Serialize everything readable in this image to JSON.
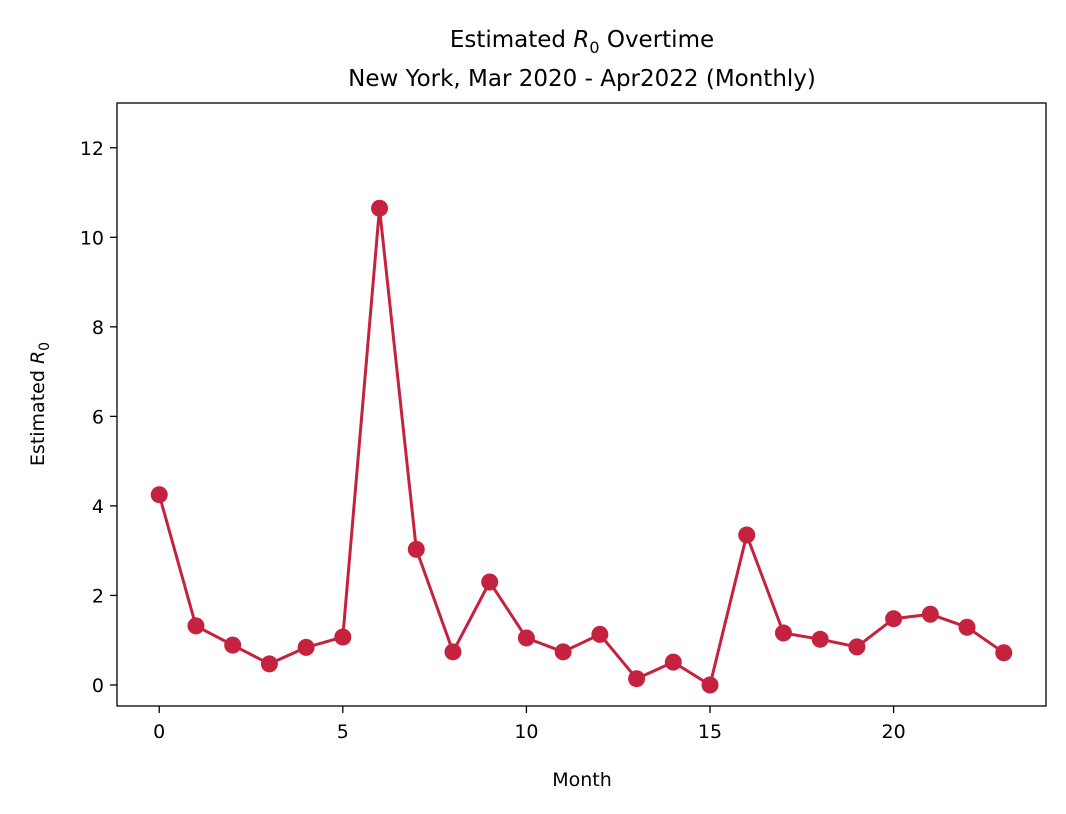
{
  "chart_data": {
    "type": "line",
    "title_prefix": "Estimated ",
    "title_symbol": "R",
    "title_subscript": "0",
    "title_suffix": " Overtime",
    "subtitle": "New York, Mar 2020 - Apr2022 (Monthly)",
    "xlabel": "Month",
    "ylabel_prefix": "Estimated ",
    "ylabel_symbol": "R",
    "ylabel_subscript": "0",
    "xlim": [
      -1.15,
      24.15
    ],
    "ylim": [
      -0.47,
      13.0
    ],
    "xticks": [
      0,
      5,
      10,
      15,
      20
    ],
    "yticks": [
      0,
      2,
      4,
      6,
      8,
      10,
      12
    ],
    "grid": false,
    "line_color": "#C4223F",
    "series": [
      {
        "x": [
          0,
          1,
          2,
          3,
          4,
          5,
          6,
          7,
          8,
          9,
          10,
          11,
          12,
          13,
          14,
          15,
          16,
          17,
          18,
          19,
          20,
          21,
          22,
          23
        ],
        "values": [
          4.25,
          1.32,
          0.89,
          0.47,
          0.84,
          1.07,
          10.65,
          3.03,
          0.74,
          2.3,
          1.05,
          0.74,
          1.13,
          0.14,
          0.51,
          0.0,
          3.35,
          1.16,
          1.02,
          0.85,
          1.48,
          1.58,
          1.29,
          0.72
        ]
      }
    ]
  }
}
